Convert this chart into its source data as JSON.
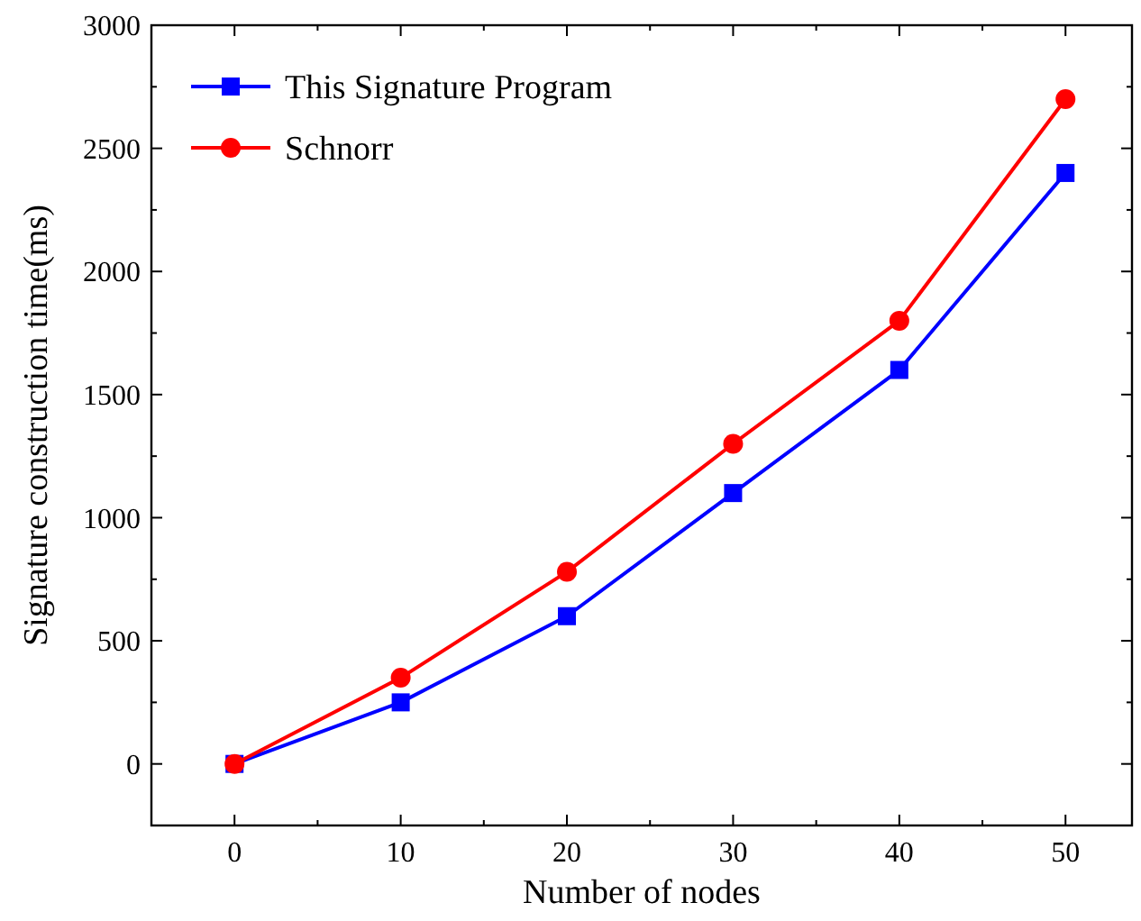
{
  "chart_data": {
    "type": "line",
    "xlabel": "Number of nodes",
    "ylabel": "Signature construction time(ms)",
    "x": [
      0,
      10,
      20,
      30,
      40,
      50
    ],
    "series": [
      {
        "name": "This Signature Program",
        "color": "#0000ff",
        "marker": "square",
        "values": [
          0,
          250,
          600,
          1100,
          1600,
          2400
        ]
      },
      {
        "name": "Schnorr",
        "color": "#ff0000",
        "marker": "circle",
        "values": [
          0,
          350,
          780,
          1300,
          1800,
          2700
        ]
      }
    ],
    "xlim": [
      -5,
      54
    ],
    "xticks": [
      0,
      10,
      20,
      30,
      40,
      50
    ],
    "ylim": [
      -250,
      3000
    ],
    "yticks": [
      0,
      500,
      1000,
      1500,
      2000,
      2500,
      3000
    ],
    "grid": false,
    "legend": "top left",
    "line_style": "solid"
  }
}
